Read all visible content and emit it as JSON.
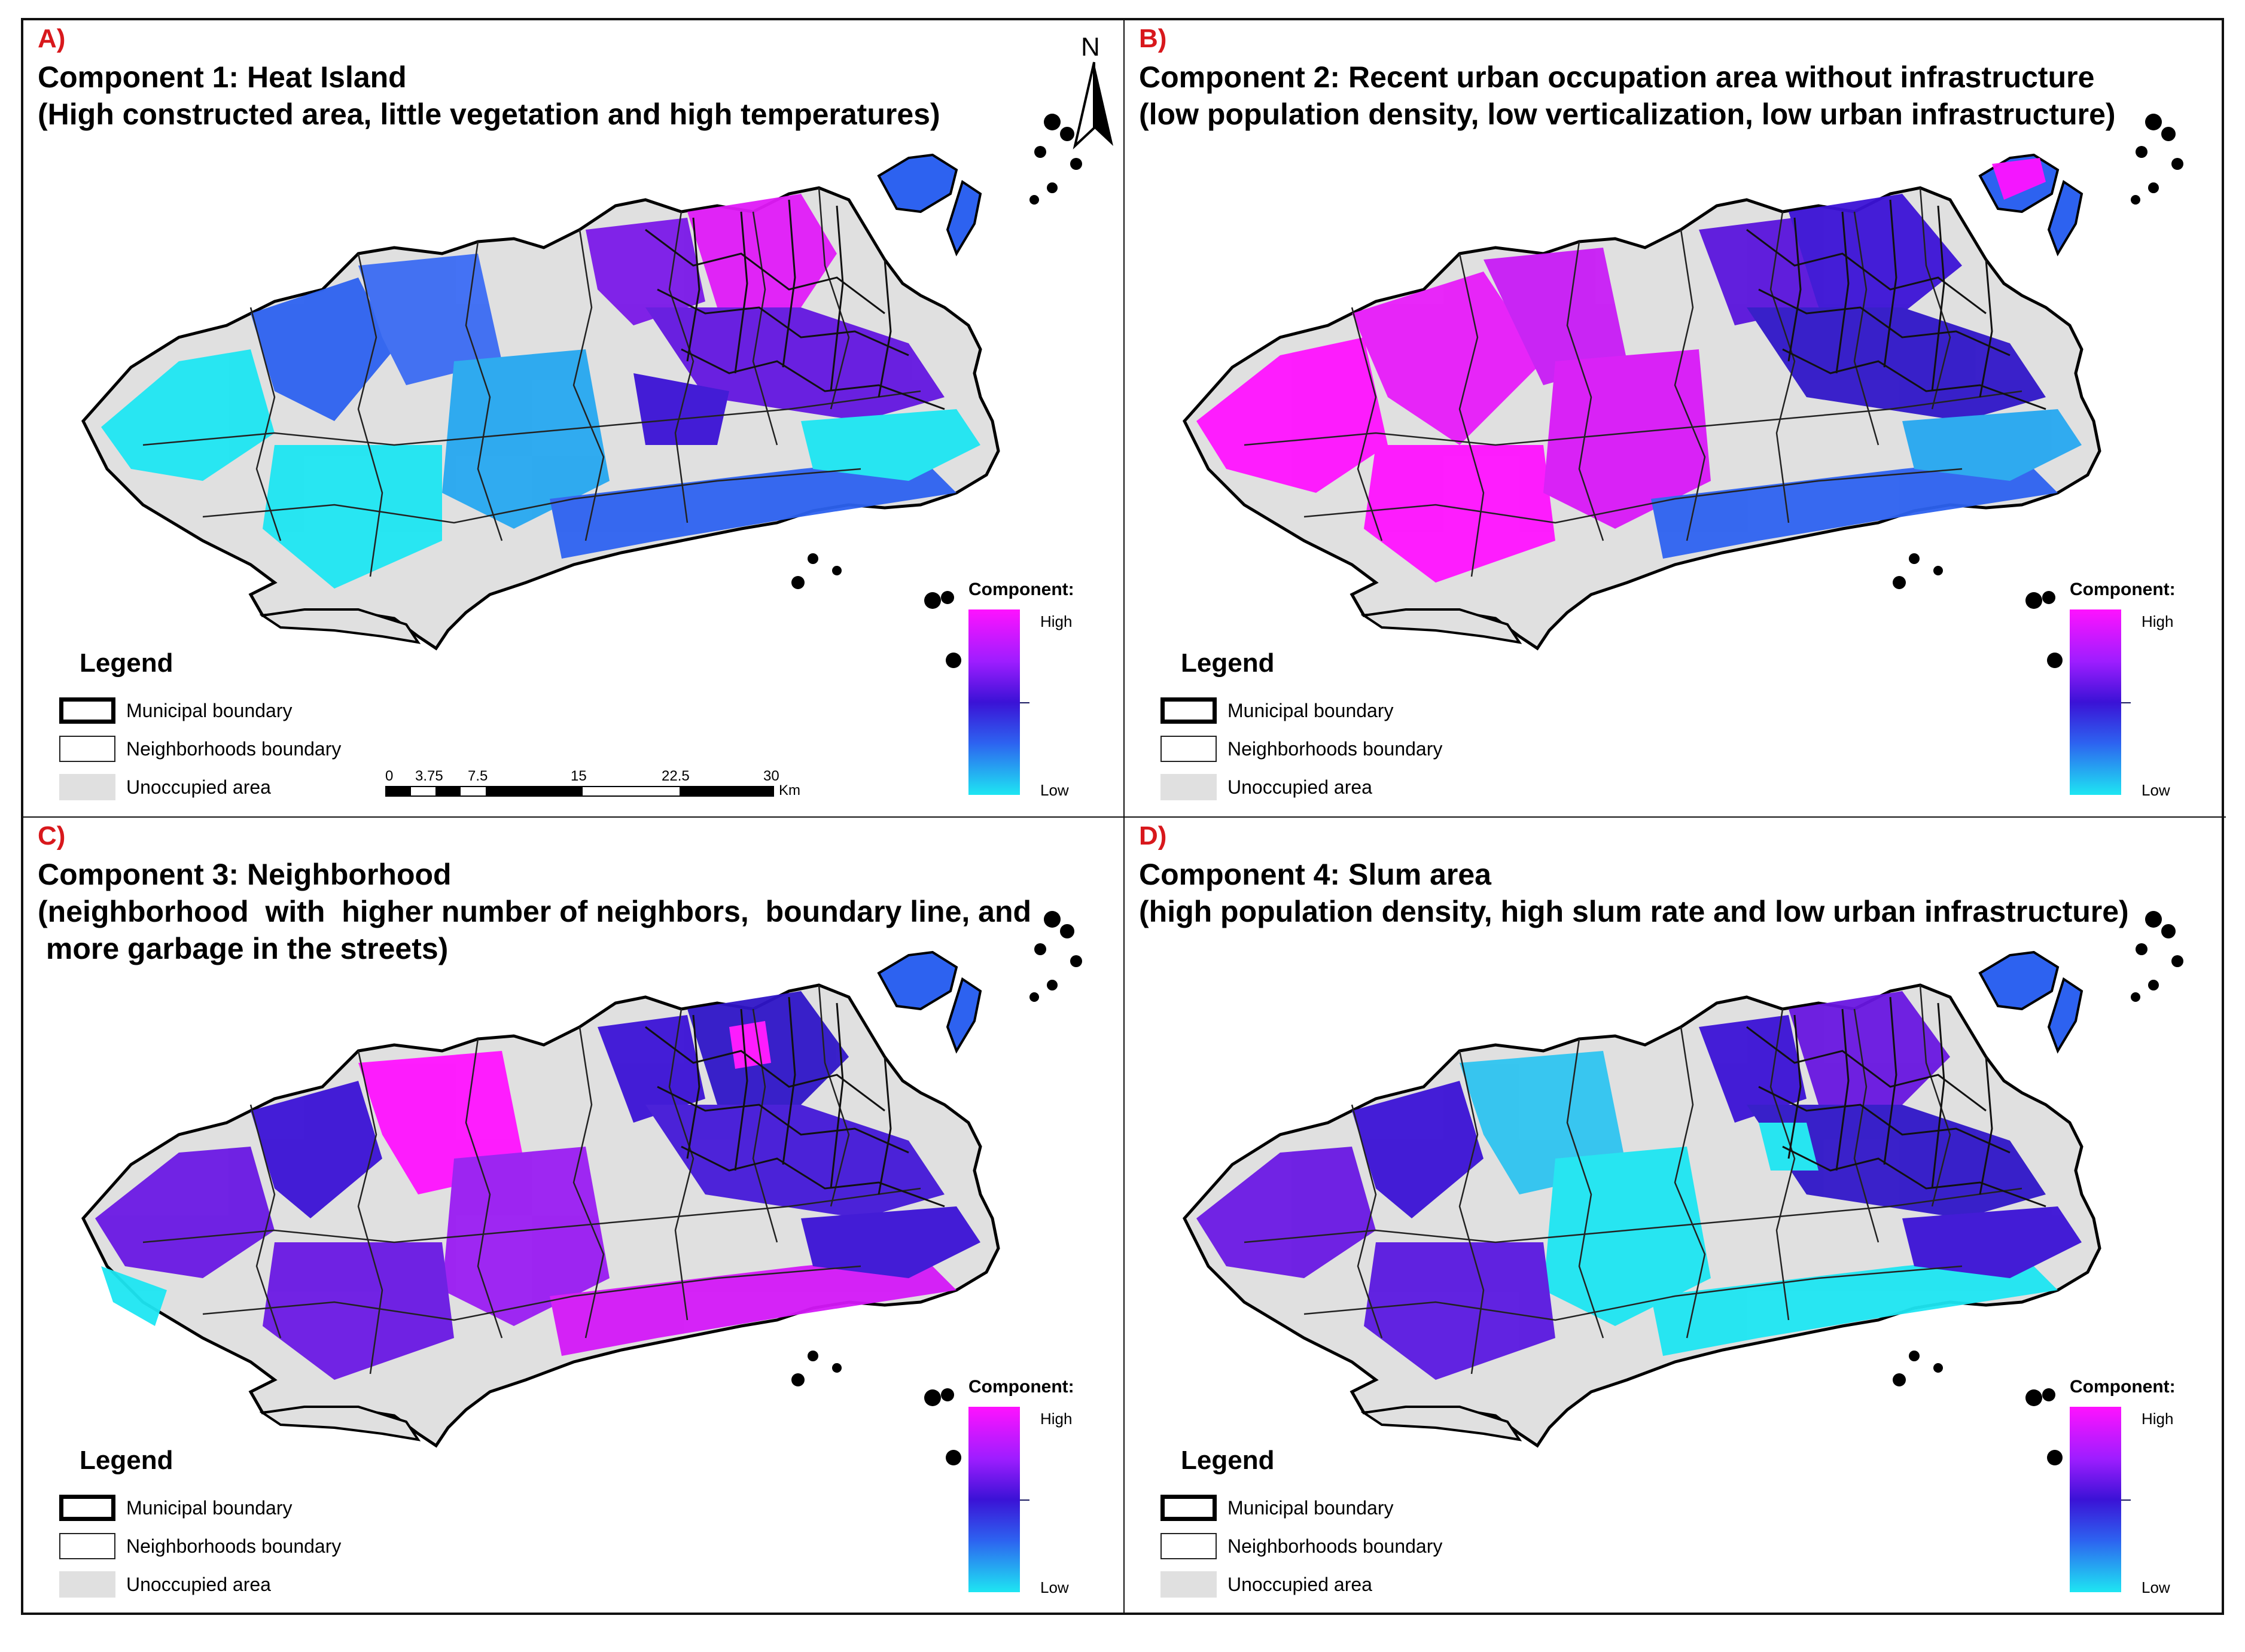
{
  "colors": {
    "tag": "#d8181c",
    "high": "#ff12ff",
    "mid": "#3b12d6",
    "low": "#1ee6f2",
    "unoccupied": "#e0e0e0"
  },
  "north_arrow": {
    "letter": "N"
  },
  "scale_bar": {
    "ticks": [
      "0",
      "3.75",
      "7.5",
      "15",
      "22.5",
      "30"
    ],
    "unit": "Km"
  },
  "panels": [
    {
      "tag": "A)",
      "title_lines": [
        "Component 1: Heat Island",
        "(High constructed area, little vegetation and high temperatures)"
      ],
      "legend": {
        "title": "Legend",
        "municipal": "Municipal boundary",
        "neighborhoods": "Neighborhoods boundary",
        "unoccupied": "Unoccupied area"
      },
      "colorbar": {
        "title": "Component:",
        "high": "High",
        "low": "Low"
      }
    },
    {
      "tag": "B)",
      "title_lines": [
        "Component 2: Recent urban occupation area without infrastructure",
        "(low population density, low verticalization, low urban infrastructure)"
      ],
      "legend": {
        "title": "Legend",
        "municipal": "Municipal boundary",
        "neighborhoods": "Neighborhoods boundary",
        "unoccupied": "Unoccupied area"
      },
      "colorbar": {
        "title": "Component:",
        "high": "High",
        "low": "Low"
      }
    },
    {
      "tag": "C)",
      "title_lines": [
        "Component 3: Neighborhood",
        "(neighborhood  with  higher number of neighbors,  boundary line, and",
        " more garbage in the streets)"
      ],
      "legend": {
        "title": "Legend",
        "municipal": "Municipal boundary",
        "neighborhoods": "Neighborhoods boundary",
        "unoccupied": "Unoccupied area"
      },
      "colorbar": {
        "title": "Component:",
        "high": "High",
        "low": "Low"
      }
    },
    {
      "tag": "D)",
      "title_lines": [
        "Component 4: Slum area",
        "(high population density, high slum rate and low urban infrastructure)"
      ],
      "legend": {
        "title": "Legend",
        "municipal": "Municipal boundary",
        "neighborhoods": "Neighborhoods boundary",
        "unoccupied": "Unoccupied area"
      },
      "colorbar": {
        "title": "Component:",
        "high": "High",
        "low": "Low"
      }
    }
  ]
}
